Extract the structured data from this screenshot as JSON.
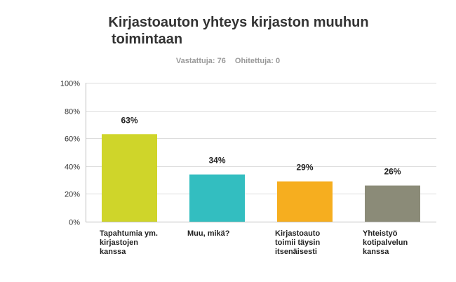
{
  "header": {
    "title_line1": "Kirjastoauton yhteys kirjaston muuhun",
    "title_line2": "toimintaan",
    "answered_label": "Vastattuja: 76",
    "skipped_label": "Ohitettuja: 0"
  },
  "chart_data": {
    "type": "bar",
    "title": "Kirjastoauton yhteys kirjaston muuhun toimintaan",
    "categories": [
      [
        "Tapahtumia ym.",
        "kirjastojen",
        "kanssa"
      ],
      [
        "Muu, mikä?"
      ],
      [
        "Kirjastoauto",
        "toimii täysin",
        "itsenäisesti"
      ],
      [
        "Yhteistyö",
        "kotipalvelun",
        "kanssa"
      ]
    ],
    "values": [
      63,
      34,
      29,
      26
    ],
    "value_labels": [
      "63%",
      "34%",
      "29%",
      "26%"
    ],
    "colors": [
      "#cfd52a",
      "#33bec0",
      "#f6ae1f",
      "#8b8b78"
    ],
    "yticks": [
      "0%",
      "20%",
      "40%",
      "60%",
      "80%",
      "100%"
    ],
    "ylim": [
      0,
      100
    ],
    "grid": true
  }
}
